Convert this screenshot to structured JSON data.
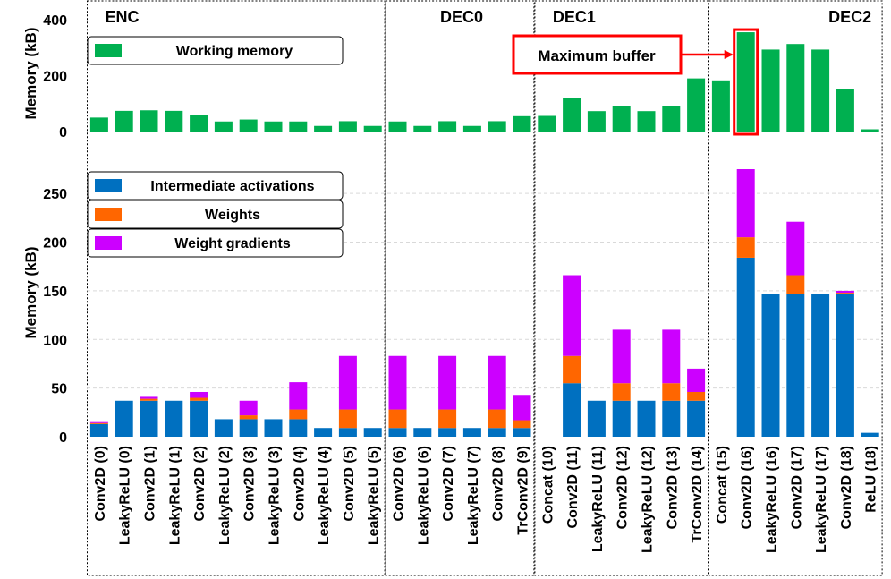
{
  "chart_data": {
    "type": "bar",
    "categories": [
      "Conv2D (0)",
      "LeakyReLU (0)",
      "Conv2D (1)",
      "LeakyReLU (1)",
      "Conv2D (2)",
      "LeakyReLU (2)",
      "Conv2D (3)",
      "LeakyReLU (3)",
      "Conv2D (4)",
      "LeakyReLU (4)",
      "Conv2D (5)",
      "LeakyReLU (5)",
      "Conv2D (6)",
      "LeakyReLU (6)",
      "Conv2D (7)",
      "LeakyReLU (7)",
      "Conv2D (8)",
      "TrConv2D (9)",
      "Concat (10)",
      "Conv2D (11)",
      "LeakyReLU (11)",
      "Conv2D (12)",
      "LeakyReLU (12)",
      "Conv2D (13)",
      "TrConv2D (14)",
      "Concat (15)",
      "Conv2D (16)",
      "LeakyReLU (16)",
      "Conv2D (17)",
      "LeakyReLU (17)",
      "Conv2D (18)",
      "ReLU (18)"
    ],
    "sections": [
      {
        "label": "ENC",
        "first": 0,
        "last": 11,
        "align": "left"
      },
      {
        "label": "DEC0",
        "first": 12,
        "last": 17,
        "align": "center"
      },
      {
        "label": "DEC1",
        "first": 18,
        "last": 24,
        "align": "left"
      },
      {
        "label": "DEC2",
        "first": 25,
        "last": 31,
        "align": "right"
      }
    ],
    "top": {
      "ylabel": "Memory (kB)",
      "ylim": [
        0,
        400
      ],
      "yticks": [
        0,
        200,
        400
      ],
      "series": [
        {
          "name": "Working memory",
          "color": "#00b050",
          "values": [
            50,
            74,
            76,
            74,
            58,
            36,
            43,
            36,
            36,
            20,
            37,
            20,
            36,
            20,
            37,
            20,
            37,
            55,
            56,
            120,
            73,
            90,
            73,
            90,
            190,
            183,
            355,
            293,
            313,
            293,
            152,
            8
          ]
        }
      ],
      "annotation": {
        "text": "Maximum buffer",
        "index": 26,
        "color": "#ff0000"
      }
    },
    "bottom": {
      "ylabel": "Memory (kB)",
      "ylim": [
        0,
        275
      ],
      "yticks": [
        0,
        50,
        100,
        150,
        200,
        250
      ],
      "series": [
        {
          "name": "Intermediate activations",
          "color": "#0070c0",
          "values": [
            13,
            37,
            37,
            37,
            37,
            18,
            18,
            18,
            18,
            9,
            9,
            9,
            9,
            9,
            9,
            9,
            9,
            9,
            0,
            55,
            37,
            37,
            37,
            37,
            37,
            0,
            184,
            147,
            147,
            147,
            147,
            4
          ]
        },
        {
          "name": "Weights",
          "color": "#ff6600",
          "values": [
            1,
            0,
            2,
            0,
            3,
            0,
            4,
            0,
            10,
            0,
            19,
            0,
            19,
            0,
            19,
            0,
            19,
            8,
            0,
            28,
            0,
            18,
            0,
            18,
            9,
            0,
            21,
            0,
            19,
            0,
            1,
            0
          ]
        },
        {
          "name": "Weight gradients",
          "color": "#cc00ff",
          "values": [
            1,
            0,
            2,
            0,
            6,
            0,
            15,
            0,
            28,
            0,
            55,
            0,
            55,
            0,
            55,
            0,
            55,
            26,
            0,
            83,
            0,
            55,
            0,
            55,
            24,
            0,
            70,
            0,
            55,
            0,
            2,
            0
          ]
        }
      ]
    }
  }
}
